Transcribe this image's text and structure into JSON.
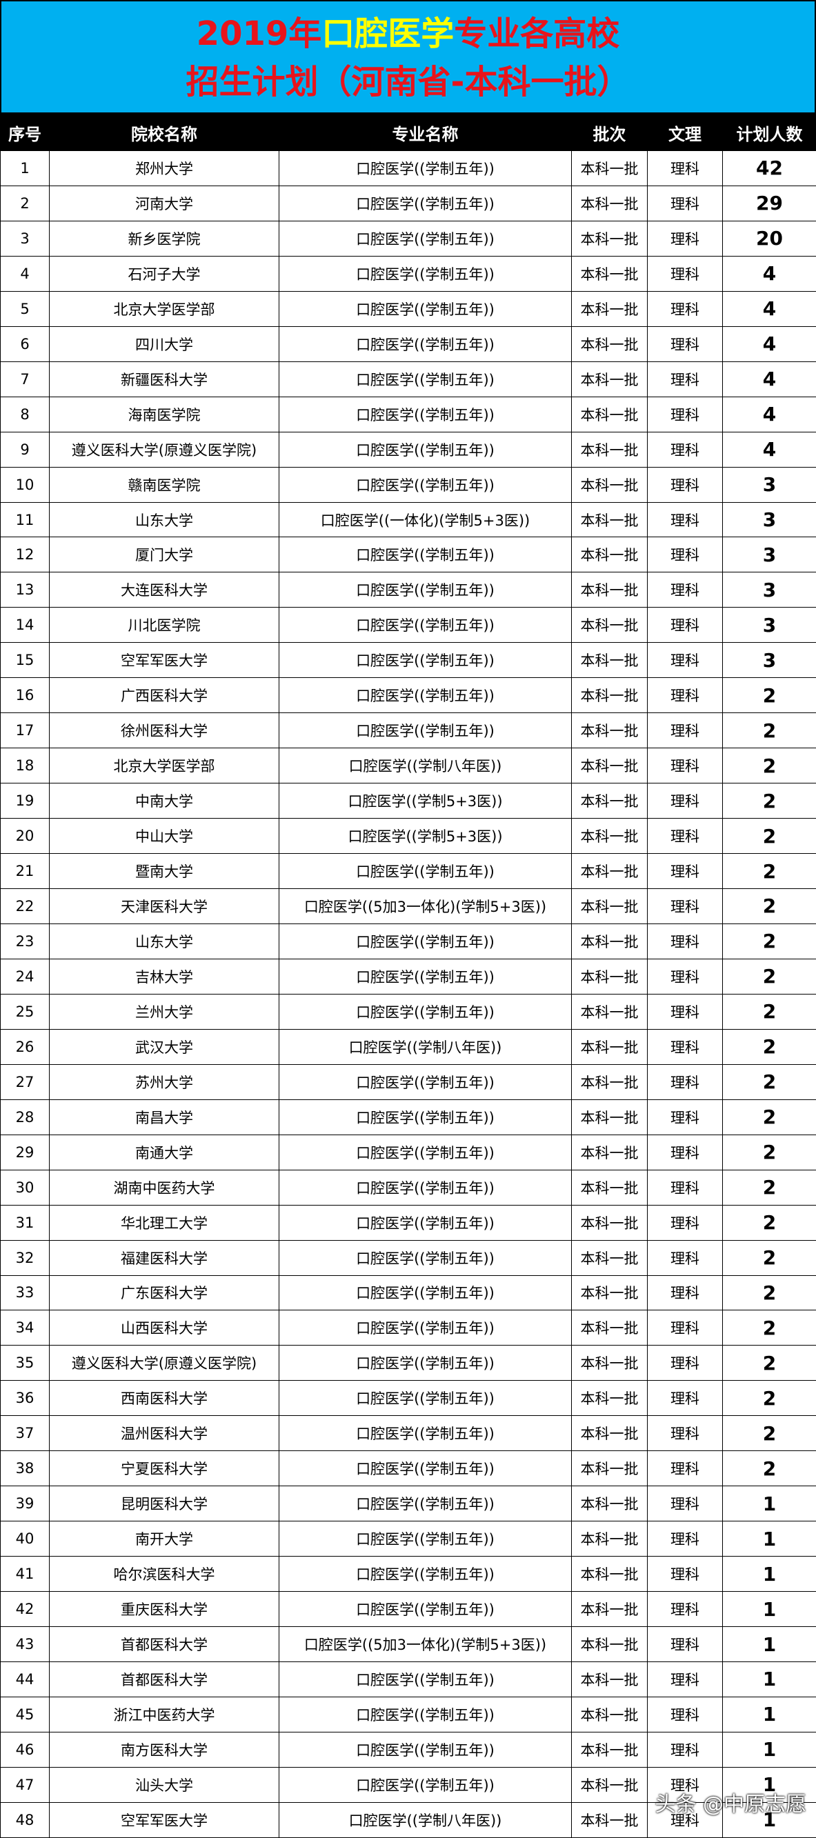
{
  "header": {
    "title_line1": [
      "2019年",
      "口腔医学",
      "专业各高校"
    ],
    "title_line2": "招生计划（河南省-本科一批）"
  },
  "table": {
    "columns": [
      "序号",
      "院校名称",
      "专业名称",
      "批次",
      "文理",
      "计划人数"
    ],
    "rows": [
      [
        1,
        "郑州大学",
        "口腔医学((学制五年))",
        "本科一批",
        "理科",
        42
      ],
      [
        2,
        "河南大学",
        "口腔医学((学制五年))",
        "本科一批",
        "理科",
        29
      ],
      [
        3,
        "新乡医学院",
        "口腔医学((学制五年))",
        "本科一批",
        "理科",
        20
      ],
      [
        4,
        "石河子大学",
        "口腔医学((学制五年))",
        "本科一批",
        "理科",
        4
      ],
      [
        5,
        "北京大学医学部",
        "口腔医学((学制五年))",
        "本科一批",
        "理科",
        4
      ],
      [
        6,
        "四川大学",
        "口腔医学((学制五年))",
        "本科一批",
        "理科",
        4
      ],
      [
        7,
        "新疆医科大学",
        "口腔医学((学制五年))",
        "本科一批",
        "理科",
        4
      ],
      [
        8,
        "海南医学院",
        "口腔医学((学制五年))",
        "本科一批",
        "理科",
        4
      ],
      [
        9,
        "遵义医科大学(原遵义医学院)",
        "口腔医学((学制五年))",
        "本科一批",
        "理科",
        4
      ],
      [
        10,
        "赣南医学院",
        "口腔医学((学制五年))",
        "本科一批",
        "理科",
        3
      ],
      [
        11,
        "山东大学",
        "口腔医学((一体化)(学制5+3医))",
        "本科一批",
        "理科",
        3
      ],
      [
        12,
        "厦门大学",
        "口腔医学((学制五年))",
        "本科一批",
        "理科",
        3
      ],
      [
        13,
        "大连医科大学",
        "口腔医学((学制五年))",
        "本科一批",
        "理科",
        3
      ],
      [
        14,
        "川北医学院",
        "口腔医学((学制五年))",
        "本科一批",
        "理科",
        3
      ],
      [
        15,
        "空军军医大学",
        "口腔医学((学制五年))",
        "本科一批",
        "理科",
        3
      ],
      [
        16,
        "广西医科大学",
        "口腔医学((学制五年))",
        "本科一批",
        "理科",
        2
      ],
      [
        17,
        "徐州医科大学",
        "口腔医学((学制五年))",
        "本科一批",
        "理科",
        2
      ],
      [
        18,
        "北京大学医学部",
        "口腔医学((学制八年医))",
        "本科一批",
        "理科",
        2
      ],
      [
        19,
        "中南大学",
        "口腔医学((学制5+3医))",
        "本科一批",
        "理科",
        2
      ],
      [
        20,
        "中山大学",
        "口腔医学((学制5+3医))",
        "本科一批",
        "理科",
        2
      ],
      [
        21,
        "暨南大学",
        "口腔医学((学制五年))",
        "本科一批",
        "理科",
        2
      ],
      [
        22,
        "天津医科大学",
        "口腔医学((5加3一体化)(学制5+3医))",
        "本科一批",
        "理科",
        2
      ],
      [
        23,
        "山东大学",
        "口腔医学((学制五年))",
        "本科一批",
        "理科",
        2
      ],
      [
        24,
        "吉林大学",
        "口腔医学((学制五年))",
        "本科一批",
        "理科",
        2
      ],
      [
        25,
        "兰州大学",
        "口腔医学((学制五年))",
        "本科一批",
        "理科",
        2
      ],
      [
        26,
        "武汉大学",
        "口腔医学((学制八年医))",
        "本科一批",
        "理科",
        2
      ],
      [
        27,
        "苏州大学",
        "口腔医学((学制五年))",
        "本科一批",
        "理科",
        2
      ],
      [
        28,
        "南昌大学",
        "口腔医学((学制五年))",
        "本科一批",
        "理科",
        2
      ],
      [
        29,
        "南通大学",
        "口腔医学((学制五年))",
        "本科一批",
        "理科",
        2
      ],
      [
        30,
        "湖南中医药大学",
        "口腔医学((学制五年))",
        "本科一批",
        "理科",
        2
      ],
      [
        31,
        "华北理工大学",
        "口腔医学((学制五年))",
        "本科一批",
        "理科",
        2
      ],
      [
        32,
        "福建医科大学",
        "口腔医学((学制五年))",
        "本科一批",
        "理科",
        2
      ],
      [
        33,
        "广东医科大学",
        "口腔医学((学制五年))",
        "本科一批",
        "理科",
        2
      ],
      [
        34,
        "山西医科大学",
        "口腔医学((学制五年))",
        "本科一批",
        "理科",
        2
      ],
      [
        35,
        "遵义医科大学(原遵义医学院)",
        "口腔医学((学制五年))",
        "本科一批",
        "理科",
        2
      ],
      [
        36,
        "西南医科大学",
        "口腔医学((学制五年))",
        "本科一批",
        "理科",
        2
      ],
      [
        37,
        "温州医科大学",
        "口腔医学((学制五年))",
        "本科一批",
        "理科",
        2
      ],
      [
        38,
        "宁夏医科大学",
        "口腔医学((学制五年))",
        "本科一批",
        "理科",
        2
      ],
      [
        39,
        "昆明医科大学",
        "口腔医学((学制五年))",
        "本科一批",
        "理科",
        1
      ],
      [
        40,
        "南开大学",
        "口腔医学((学制五年))",
        "本科一批",
        "理科",
        1
      ],
      [
        41,
        "哈尔滨医科大学",
        "口腔医学((学制五年))",
        "本科一批",
        "理科",
        1
      ],
      [
        42,
        "重庆医科大学",
        "口腔医学((学制五年))",
        "本科一批",
        "理科",
        1
      ],
      [
        43,
        "首都医科大学",
        "口腔医学((5加3一体化)(学制5+3医))",
        "本科一批",
        "理科",
        1
      ],
      [
        44,
        "首都医科大学",
        "口腔医学((学制五年))",
        "本科一批",
        "理科",
        1
      ],
      [
        45,
        "浙江中医药大学",
        "口腔医学((学制五年))",
        "本科一批",
        "理科",
        1
      ],
      [
        46,
        "南方医科大学",
        "口腔医学((学制五年))",
        "本科一批",
        "理科",
        1
      ],
      [
        47,
        "汕头大学",
        "口腔医学((学制五年))",
        "本科一批",
        "理科",
        1
      ],
      [
        48,
        "空军军医大学",
        "口腔医学((学制八年医))",
        "本科一批",
        "理科",
        1
      ]
    ]
  },
  "watermark": "头条 @中原志愿"
}
